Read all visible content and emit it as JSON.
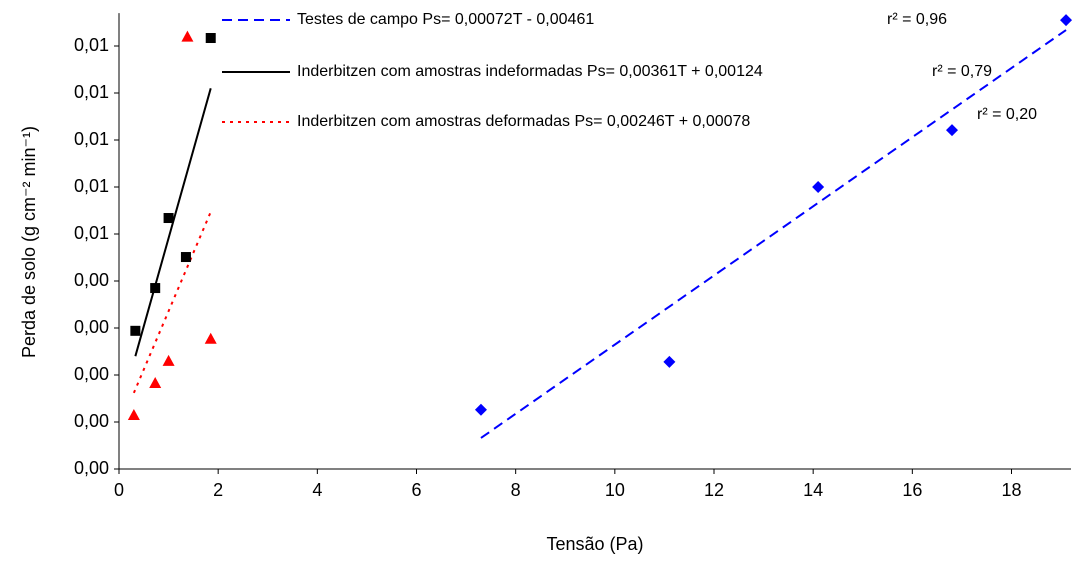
{
  "chart_data": {
    "type": "scatter",
    "x_label": "Tensão (Pa)",
    "y_label": "Perda de solo (g cm⁻² min⁻¹)",
    "xlim": [
      0,
      19.2
    ],
    "xticks": [
      0,
      2,
      4,
      6,
      8,
      10,
      12,
      14,
      16,
      18
    ],
    "ylim": [
      0,
      0.0097
    ],
    "yticks": [
      {
        "value": 0,
        "label": "0,00"
      },
      {
        "value": 0.001,
        "label": "0,00"
      },
      {
        "value": 0.002,
        "label": "0,00"
      },
      {
        "value": 0.003,
        "label": "0,00"
      },
      {
        "value": 0.004,
        "label": "0,00"
      },
      {
        "value": 0.005,
        "label": "0,01"
      },
      {
        "value": 0.006,
        "label": "0,01"
      },
      {
        "value": 0.007,
        "label": "0,01"
      },
      {
        "value": 0.008,
        "label": "0,01"
      },
      {
        "value": 0.009,
        "label": "0,01"
      }
    ],
    "grid": false,
    "points": [
      {
        "marker": "diamond",
        "color": "#0000ff",
        "x": [
          7.3,
          11.1,
          14.1,
          16.8,
          19.1
        ],
        "values": [
          0.00126,
          0.00228,
          0.006,
          0.00721,
          0.00955
        ]
      },
      {
        "marker": "square",
        "color": "#000000",
        "x": [
          0.33,
          0.73,
          1.0,
          1.35,
          1.85
        ],
        "values": [
          0.00294,
          0.00385,
          0.00534,
          0.00451,
          0.00917
        ]
      },
      {
        "marker": "triangle",
        "color": "#ff0000",
        "x": [
          0.3,
          0.73,
          1.0,
          1.38,
          1.85
        ],
        "values": [
          0.00115,
          0.00183,
          0.0023,
          0.0092,
          0.00277
        ]
      }
    ],
    "series": [
      {
        "name": "Testes de campo Ps= 0,00072T - 0,00461",
        "color": "#0000ff",
        "dash": "dashed",
        "x": [
          7.3,
          19.1
        ],
        "values": [
          0.00066,
          0.00934
        ],
        "r2_label": "r² = 0,96"
      },
      {
        "name": "Inderbitzen com amostras indeformadas Ps= 0,00361T + 0,00124",
        "color": "#000000",
        "dash": "solid",
        "x": [
          0.33,
          1.85
        ],
        "values": [
          0.0024,
          0.0081
        ],
        "r2_label": "r² = 0,79"
      },
      {
        "name": "Inderbitzen com amostras deformadas Ps= 0,00246T + 0,00078",
        "color": "#ff0000",
        "dash": "dotted",
        "x": [
          0.3,
          1.85
        ],
        "values": [
          0.00162,
          0.00547
        ],
        "r2_label": "r² = 0,20"
      }
    ]
  }
}
